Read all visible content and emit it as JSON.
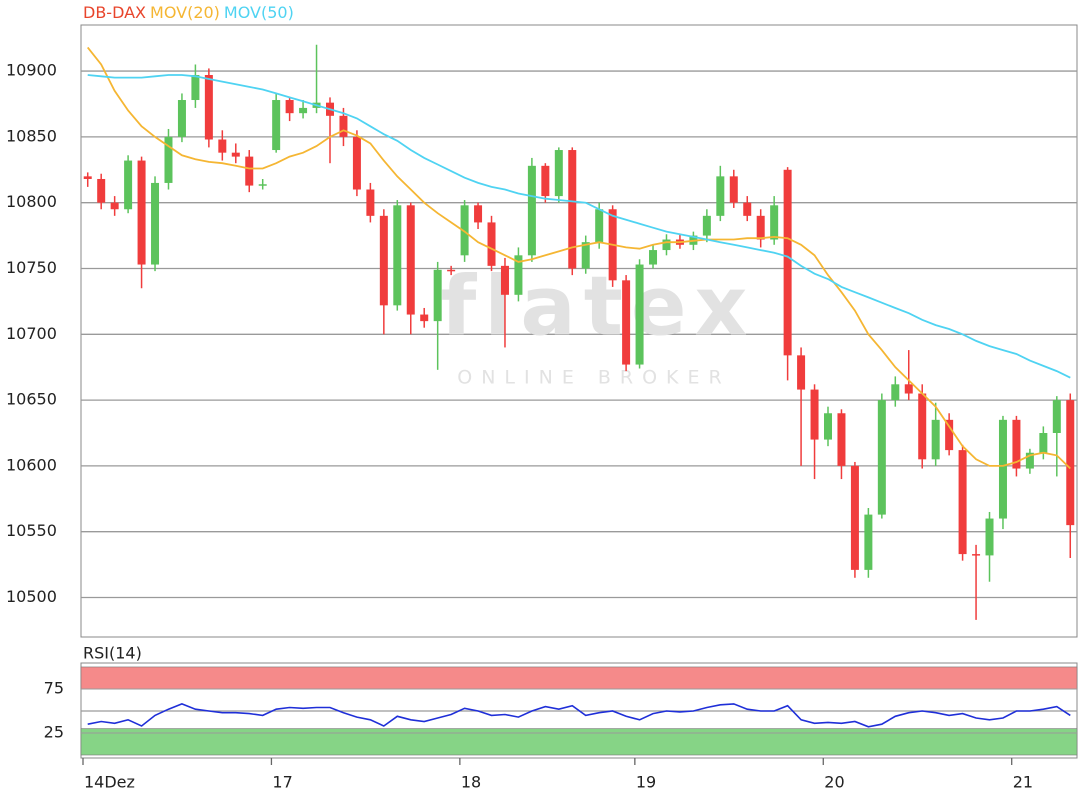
{
  "chart_data": [
    {
      "type": "candlestick",
      "title": "DB-DAX",
      "title_color": "#e8452c",
      "up_color": "#5cc35c",
      "down_color": "#f03c3c",
      "open": [
        10820,
        10818,
        10800,
        10795,
        10832,
        10753,
        10815,
        10850,
        10878,
        10897,
        10848,
        10838,
        10835,
        10813,
        10840,
        10878,
        10868,
        10872,
        10876,
        10866,
        10850,
        10810,
        10790,
        10722,
        10798,
        10715,
        10710,
        10749,
        10760,
        10798,
        10785,
        10752,
        10730,
        10760,
        10828,
        10805,
        10840,
        10750,
        10770,
        10795,
        10741,
        10677,
        10753,
        10764,
        10772,
        10768,
        10775,
        10790,
        10820,
        10800,
        10790,
        10772,
        10825,
        10684,
        10658,
        10620,
        10640,
        10600,
        10521,
        10563,
        10650,
        10662,
        10655,
        10605,
        10635,
        10612,
        10533,
        10532,
        10560,
        10635,
        10598,
        10610,
        10625,
        10650
      ],
      "high": [
        10823,
        10822,
        10805,
        10836,
        10835,
        10820,
        10856,
        10883,
        10905,
        10902,
        10855,
        10845,
        10840,
        10818,
        10883,
        10880,
        10878,
        10920,
        10880,
        10872,
        10855,
        10815,
        10795,
        10802,
        10800,
        10720,
        10755,
        10752,
        10802,
        10800,
        10790,
        10758,
        10766,
        10834,
        10830,
        10842,
        10842,
        10775,
        10800,
        10798,
        10745,
        10757,
        10768,
        10776,
        10776,
        10778,
        10795,
        10828,
        10825,
        10805,
        10795,
        10805,
        10827,
        10690,
        10662,
        10645,
        10643,
        10603,
        10568,
        10655,
        10668,
        10688,
        10662,
        10648,
        10640,
        10616,
        10540,
        10565,
        10638,
        10638,
        10613,
        10630,
        10653,
        10655
      ],
      "low": [
        10812,
        10795,
        10790,
        10792,
        10735,
        10748,
        10810,
        10846,
        10872,
        10842,
        10832,
        10830,
        10808,
        10810,
        10838,
        10862,
        10864,
        10868,
        10830,
        10843,
        10805,
        10785,
        10700,
        10718,
        10700,
        10705,
        10673,
        10745,
        10755,
        10780,
        10748,
        10690,
        10725,
        10755,
        10800,
        10800,
        10745,
        10746,
        10765,
        10736,
        10672,
        10674,
        10750,
        10760,
        10765,
        10764,
        10770,
        10786,
        10796,
        10786,
        10766,
        10768,
        10665,
        10600,
        10590,
        10615,
        10590,
        10515,
        10515,
        10560,
        10645,
        10650,
        10598,
        10600,
        10608,
        10528,
        10483,
        10512,
        10552,
        10592,
        10594,
        10605,
        10592,
        10530
      ],
      "close": [
        10818,
        10800,
        10795,
        10832,
        10753,
        10815,
        10850,
        10878,
        10897,
        10848,
        10838,
        10835,
        10813,
        10814,
        10878,
        10868,
        10872,
        10876,
        10866,
        10850,
        10810,
        10790,
        10722,
        10798,
        10715,
        10710,
        10749,
        10748,
        10798,
        10785,
        10752,
        10730,
        10760,
        10828,
        10805,
        10840,
        10750,
        10770,
        10795,
        10741,
        10677,
        10753,
        10764,
        10772,
        10768,
        10775,
        10790,
        10820,
        10800,
        10790,
        10772,
        10798,
        10684,
        10658,
        10620,
        10640,
        10600,
        10521,
        10563,
        10650,
        10662,
        10655,
        10605,
        10635,
        10612,
        10533,
        10532,
        10560,
        10635,
        10598,
        10610,
        10625,
        10650,
        10555
      ],
      "series": [
        {
          "name": "MOV(20)",
          "color": "#f5b633",
          "values": [
            10918,
            10905,
            10885,
            10870,
            10858,
            10850,
            10843,
            10836,
            10833,
            10831,
            10830,
            10828,
            10826,
            10826,
            10830,
            10835,
            10838,
            10843,
            10850,
            10855,
            10851,
            10845,
            10832,
            10820,
            10810,
            10800,
            10792,
            10785,
            10778,
            10770,
            10765,
            10760,
            10755,
            10757,
            10760,
            10763,
            10766,
            10768,
            10770,
            10768,
            10766,
            10765,
            10768,
            10770,
            10770,
            10771,
            10772,
            10772,
            10772,
            10773,
            10773,
            10774,
            10773,
            10768,
            10760,
            10745,
            10732,
            10718,
            10700,
            10688,
            10675,
            10665,
            10655,
            10645,
            10630,
            10615,
            10605,
            10600,
            10600,
            10603,
            10608,
            10610,
            10608,
            10598
          ]
        },
        {
          "name": "MOV(50)",
          "color": "#4fd3f2",
          "values": [
            10897,
            10896,
            10895,
            10895,
            10895,
            10896,
            10897,
            10897,
            10896,
            10894,
            10892,
            10890,
            10888,
            10886,
            10883,
            10880,
            10877,
            10874,
            10871,
            10868,
            10864,
            10858,
            10852,
            10847,
            10840,
            10834,
            10829,
            10824,
            10819,
            10815,
            10812,
            10810,
            10807,
            10805,
            10803,
            10802,
            10801,
            10800,
            10795,
            10790,
            10787,
            10784,
            10781,
            10778,
            10776,
            10774,
            10772,
            10770,
            10768,
            10766,
            10764,
            10762,
            10759,
            10752,
            10746,
            10742,
            10736,
            10732,
            10728,
            10724,
            10720,
            10716,
            10711,
            10707,
            10704,
            10700,
            10695,
            10691,
            10688,
            10685,
            10680,
            10676,
            10672,
            10667
          ]
        }
      ],
      "ylim": [
        10470,
        10935
      ],
      "yticks": [
        10500,
        10550,
        10600,
        10650,
        10700,
        10750,
        10800,
        10850,
        10900
      ],
      "grid": true,
      "watermark": {
        "brand": "flatex",
        "tagline": "ONLINE BROKER"
      }
    },
    {
      "type": "line",
      "categories": [
        "14Dez",
        null,
        null,
        null,
        null,
        null,
        null,
        null,
        null,
        null,
        null,
        null,
        null,
        null,
        "17",
        null,
        null,
        null,
        null,
        null,
        null,
        null,
        null,
        null,
        null,
        null,
        null,
        null,
        "18",
        null,
        null,
        null,
        null,
        null,
        null,
        null,
        null,
        null,
        null,
        null,
        null,
        "19",
        null,
        null,
        null,
        null,
        null,
        null,
        null,
        null,
        null,
        null,
        null,
        null,
        null,
        "20",
        null,
        null,
        null,
        null,
        null,
        null,
        null,
        null,
        null,
        null,
        null,
        null,
        null,
        "21",
        null,
        null,
        null,
        null
      ],
      "series": [
        {
          "name": "RSI(14)",
          "color": "#1f2fd8",
          "values": [
            35,
            38,
            36,
            40,
            33,
            45,
            52,
            58,
            52,
            50,
            48,
            48,
            47,
            45,
            52,
            54,
            53,
            54,
            54,
            48,
            43,
            40,
            33,
            44,
            40,
            38,
            42,
            46,
            53,
            50,
            45,
            46,
            43,
            50,
            55,
            52,
            56,
            45,
            48,
            50,
            44,
            40,
            47,
            50,
            49,
            50,
            54,
            57,
            58,
            52,
            50,
            50,
            56,
            40,
            36,
            37,
            36,
            38,
            32,
            35,
            44,
            48,
            50,
            48,
            45,
            47,
            42,
            40,
            42,
            50,
            50,
            52,
            55,
            45
          ]
        }
      ],
      "ylim": [
        -3.4,
        104.5
      ],
      "yticks": [
        25,
        75
      ],
      "grid": true,
      "reference_lines": [
        50
      ],
      "bands": [
        {
          "from": 75,
          "to": 100,
          "color": "#f58a8a"
        },
        {
          "from": 0,
          "to": 30,
          "color": "#86d486"
        }
      ]
    }
  ]
}
